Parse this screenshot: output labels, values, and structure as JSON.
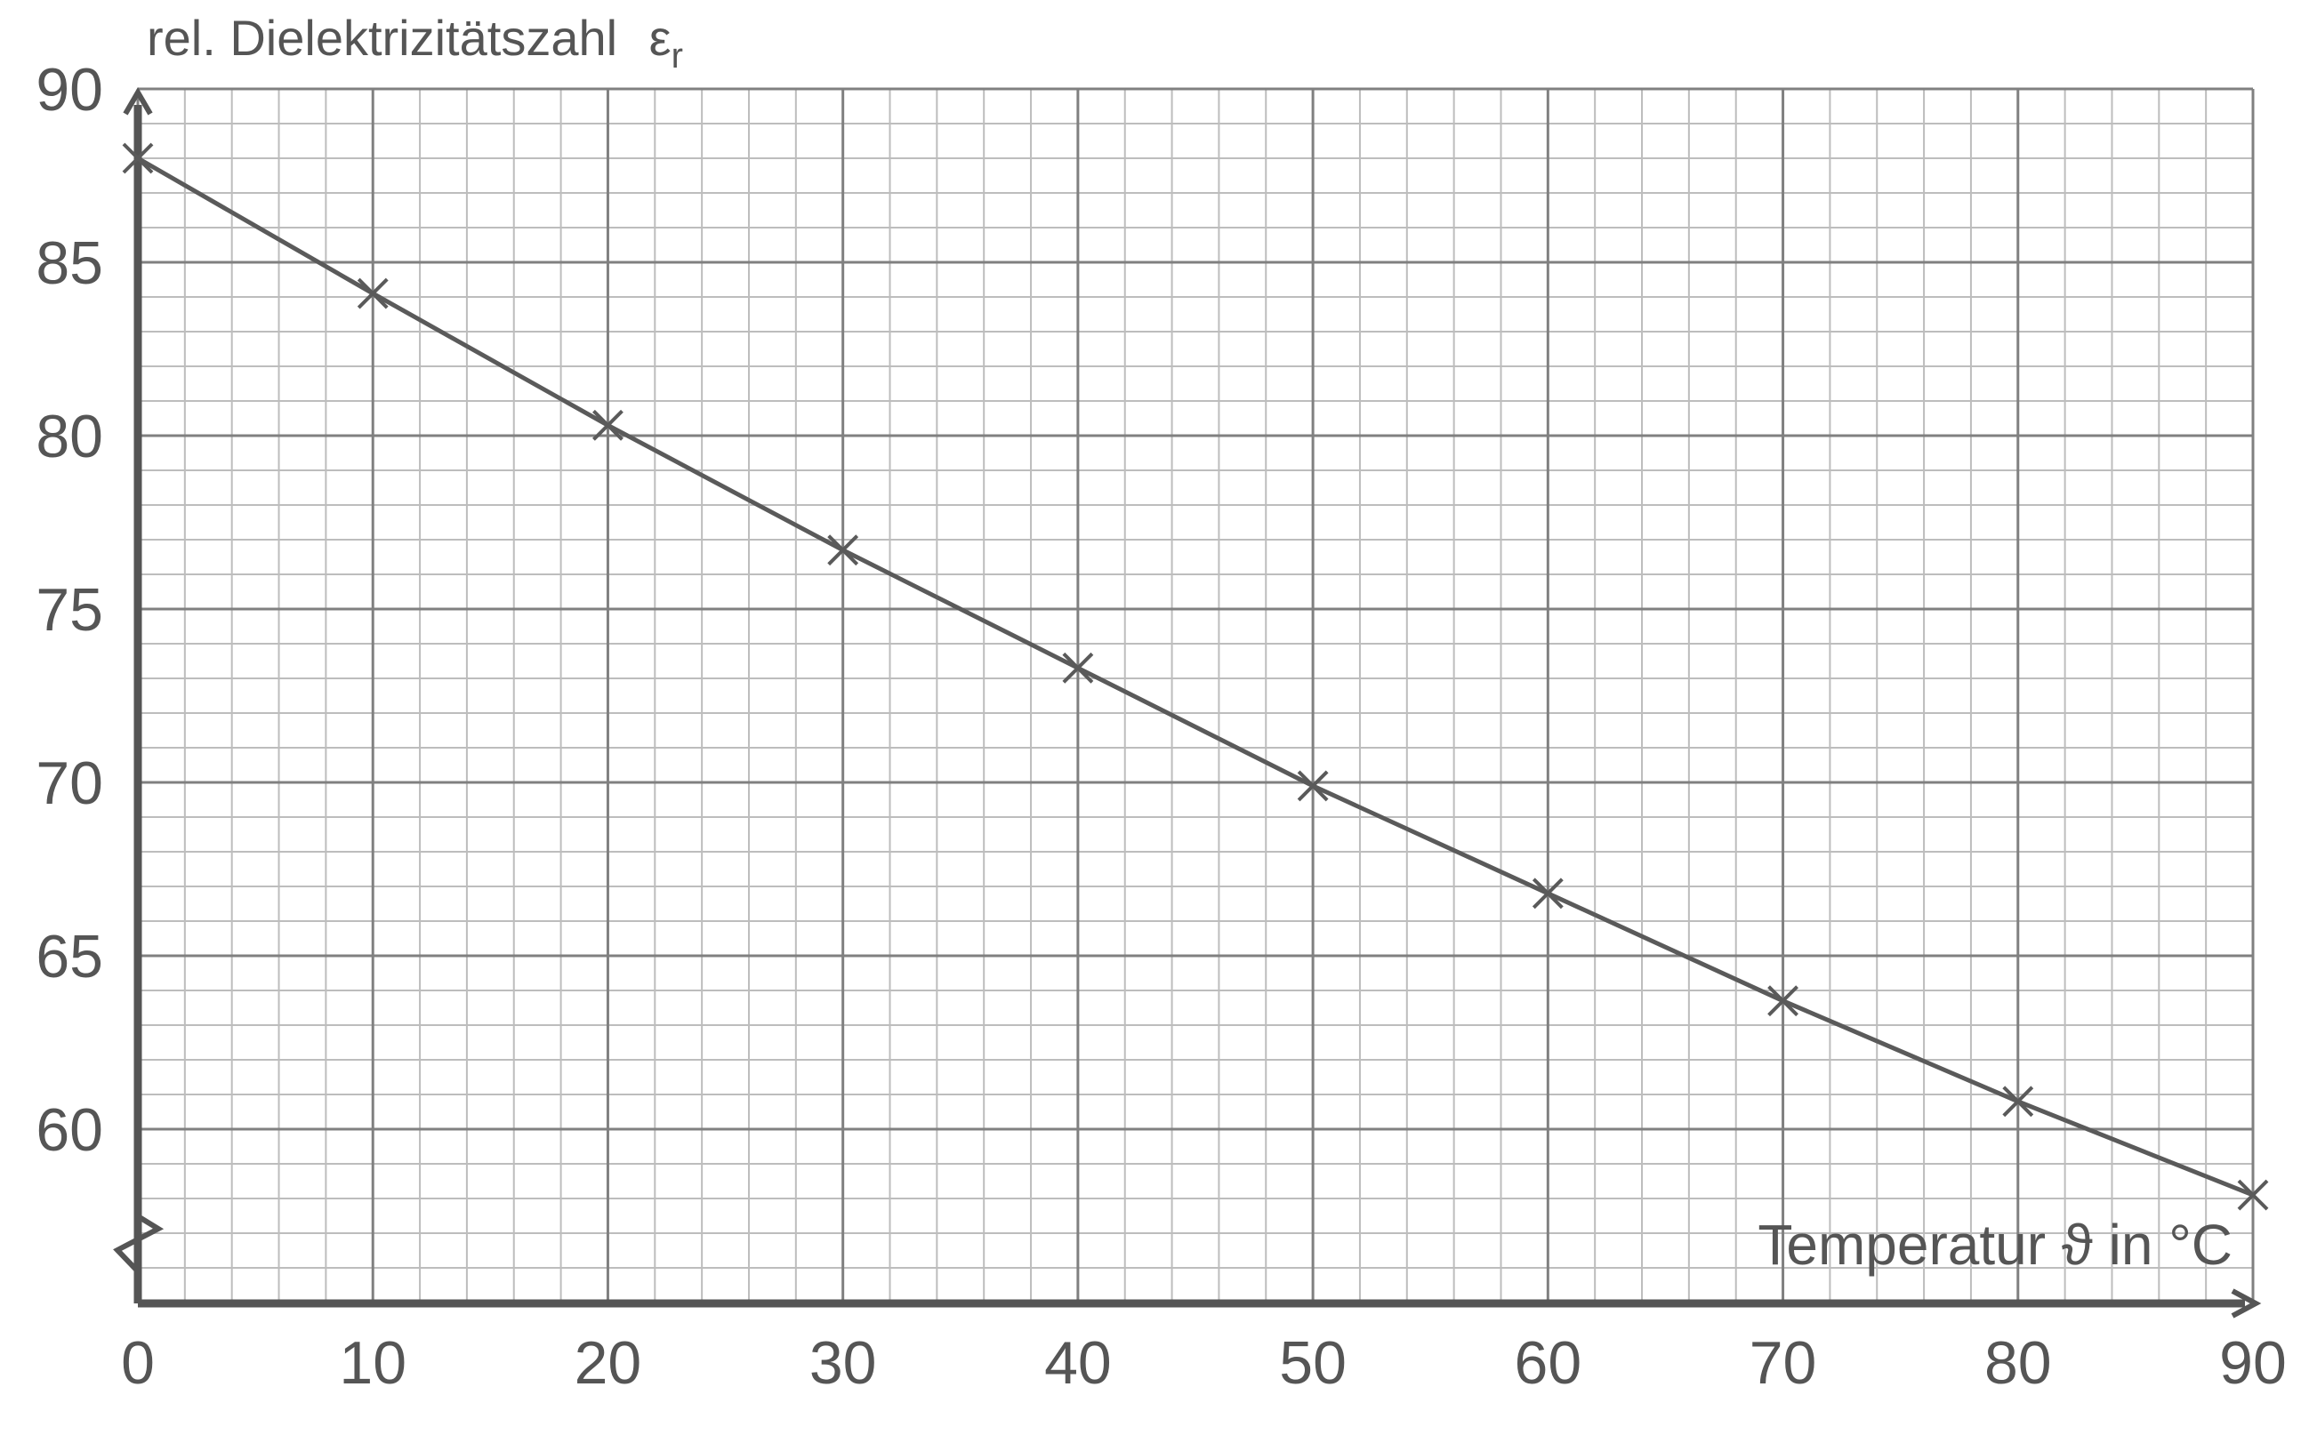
{
  "chart_data": {
    "type": "line",
    "ylabel": "rel. Dielektrizitätszahl",
    "ylabel_symbol": "ε",
    "ylabel_subscript": "r",
    "xlabel": "Temperatur",
    "xlabel_symbol": "ϑ",
    "xlabel_unit_prefix": "in",
    "xlabel_unit": "°C",
    "x": [
      0,
      10,
      20,
      30,
      40,
      50,
      60,
      70,
      80,
      90
    ],
    "y": [
      88.0,
      84.1,
      80.3,
      76.7,
      73.3,
      69.9,
      66.8,
      63.7,
      60.8,
      58.1
    ],
    "xlim": [
      0,
      90
    ],
    "ylim": [
      55,
      90
    ],
    "xticks": [
      "0",
      "10",
      "20",
      "30",
      "40",
      "50",
      "60",
      "70",
      "80",
      "90"
    ],
    "yticks": [
      "60",
      "65",
      "70",
      "75",
      "80",
      "85",
      "90"
    ],
    "marker": "cross",
    "grid": true,
    "axis_break_y": true,
    "colors": {
      "line": "#5a5a5a",
      "axis": "#555555",
      "grid_major": "#808080",
      "grid_minor": "#bdbdbd"
    }
  }
}
